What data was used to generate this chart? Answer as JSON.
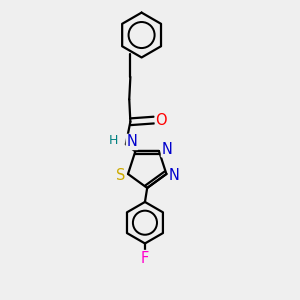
{
  "bg_color": "#efefef",
  "bond_color": "#000000",
  "bond_width": 1.6,
  "atom_colors": {
    "O": "#ff0000",
    "N": "#0000cc",
    "S": "#ccaa00",
    "F": "#ff00cc",
    "H": "#008080",
    "C": "#000000"
  },
  "font_size": 9.5
}
